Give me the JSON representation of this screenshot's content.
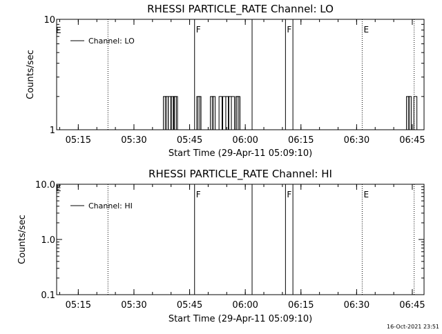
{
  "chart_data": [
    {
      "type": "line",
      "title": "RHESSI PARTICLE_RATE Channel: LO",
      "xlabel": "Start Time (29-Apr-11 05:09:10)",
      "ylabel": "Counts/sec",
      "x_ticks": [
        "05:15",
        "05:30",
        "05:45",
        "06:00",
        "06:15",
        "06:30",
        "06:45"
      ],
      "y_scale": "log",
      "ylim": [
        1,
        10
      ],
      "y_ticks": [
        "1",
        "10"
      ],
      "legend": "Channel: LO",
      "legend_position": "top-left",
      "x_range": [
        "05:09:10",
        "06:48:10"
      ],
      "series": [
        {
          "name": "Channel: LO",
          "spikes": [
            {
              "x": "05:38:20",
              "y": 2
            },
            {
              "x": "05:38:50",
              "y": 2
            },
            {
              "x": "05:39:40",
              "y": 2
            },
            {
              "x": "05:40:20",
              "y": 2
            },
            {
              "x": "05:41:00",
              "y": 2
            },
            {
              "x": "05:41:20",
              "y": 2
            },
            {
              "x": "05:47:20",
              "y": 2
            },
            {
              "x": "05:47:40",
              "y": 2
            },
            {
              "x": "05:51:00",
              "y": 2
            },
            {
              "x": "05:51:30",
              "y": 2
            },
            {
              "x": "05:53:20",
              "y": 2
            },
            {
              "x": "05:54:20",
              "y": 2
            },
            {
              "x": "05:55:10",
              "y": 2
            },
            {
              "x": "05:55:50",
              "y": 2
            },
            {
              "x": "05:56:40",
              "y": 2
            },
            {
              "x": "05:57:50",
              "y": 2
            },
            {
              "x": "05:58:10",
              "y": 2
            },
            {
              "x": "06:43:50",
              "y": 2
            },
            {
              "x": "06:44:20",
              "y": 2
            },
            {
              "x": "06:45:50",
              "y": 2
            }
          ]
        }
      ],
      "markers": [
        {
          "x": "05:23:00",
          "style": "dotted",
          "flag": ""
        },
        {
          "x": "05:46:20",
          "style": "solid",
          "flag": "F"
        },
        {
          "x": "06:01:50",
          "style": "solid",
          "flag": ""
        },
        {
          "x": "06:10:50",
          "style": "solid",
          "flag": "F"
        },
        {
          "x": "06:12:50",
          "style": "solid",
          "flag": ""
        },
        {
          "x": "06:31:30",
          "style": "dotted",
          "flag": "E"
        },
        {
          "x": "06:45:30",
          "style": "dotted",
          "flag": ""
        }
      ],
      "start_flag": "E"
    },
    {
      "type": "line",
      "title": "RHESSI PARTICLE_RATE Channel: HI",
      "xlabel": "Start Time (29-Apr-11 05:09:10)",
      "ylabel": "Counts/sec",
      "x_ticks": [
        "05:15",
        "05:30",
        "05:45",
        "06:00",
        "06:15",
        "06:30",
        "06:45"
      ],
      "y_scale": "log",
      "ylim": [
        0.1,
        10
      ],
      "y_ticks": [
        "0.1",
        "1.0",
        "10.0"
      ],
      "legend": "Channel: HI",
      "legend_position": "top-left",
      "x_range": [
        "05:09:10",
        "06:48:10"
      ],
      "series": [
        {
          "name": "Channel: HI",
          "spikes": []
        }
      ],
      "markers": [
        {
          "x": "05:23:00",
          "style": "dotted",
          "flag": ""
        },
        {
          "x": "05:46:20",
          "style": "solid",
          "flag": "F"
        },
        {
          "x": "06:01:50",
          "style": "solid",
          "flag": ""
        },
        {
          "x": "06:10:50",
          "style": "solid",
          "flag": "F"
        },
        {
          "x": "06:12:50",
          "style": "solid",
          "flag": ""
        },
        {
          "x": "06:31:30",
          "style": "dotted",
          "flag": "E"
        },
        {
          "x": "06:45:30",
          "style": "dotted",
          "flag": ""
        }
      ],
      "start_flag": "E"
    }
  ],
  "footer": {
    "timestamp": "16-Oct-2021 23:51"
  }
}
